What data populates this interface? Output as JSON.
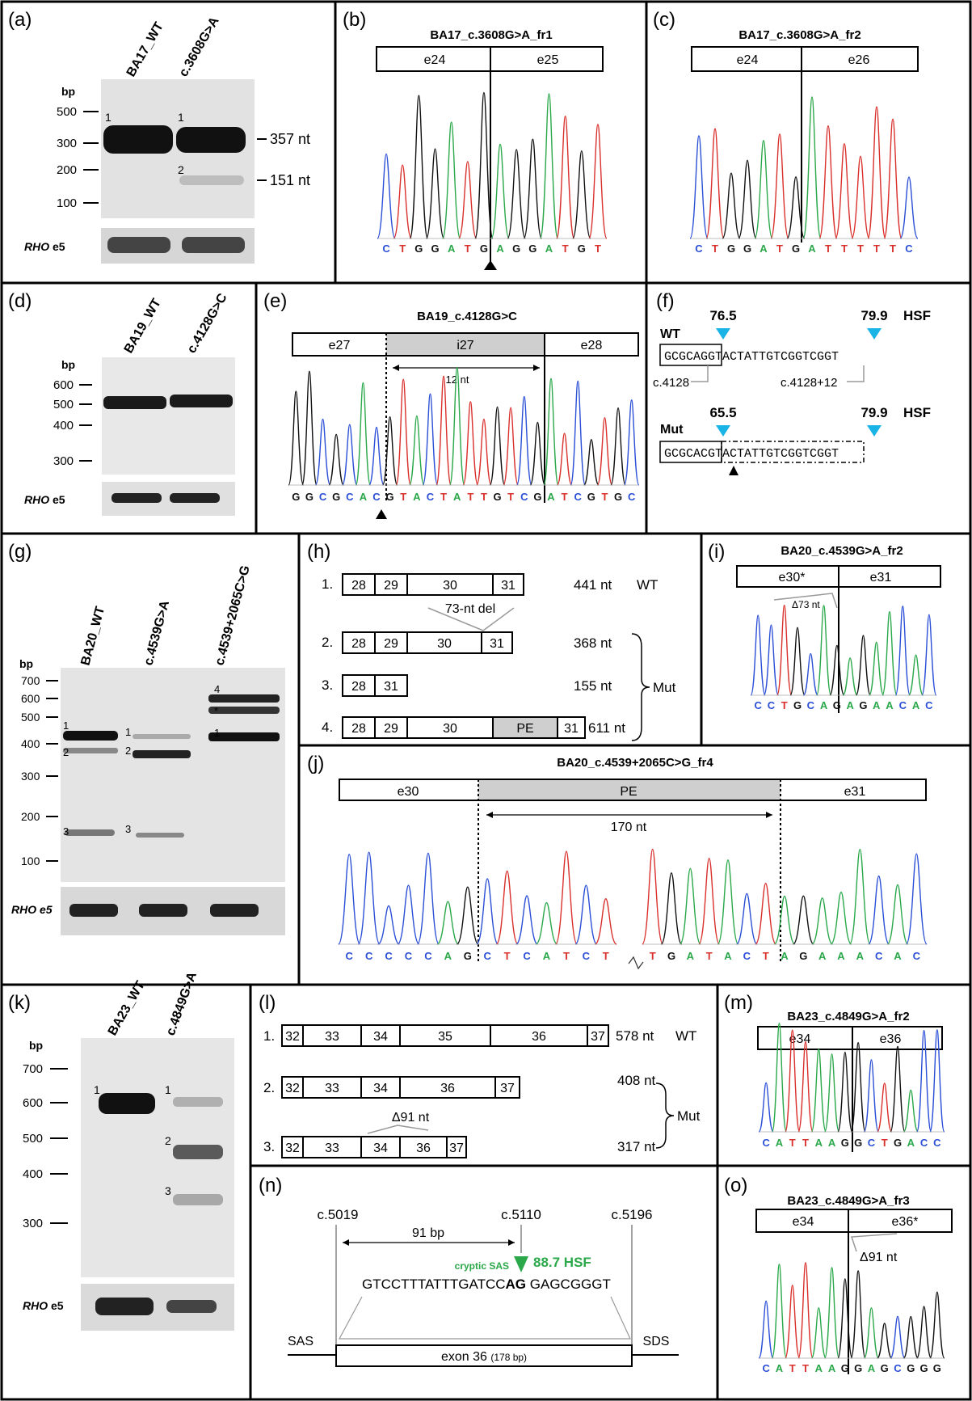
{
  "panels": {
    "a": {
      "label": "(a)",
      "lanes": [
        "BA17_WT",
        "c.3608G>A"
      ],
      "bp_unit": "bp",
      "markers": [
        "500",
        "300",
        "200",
        "100"
      ],
      "band_nums": [
        "1",
        "1",
        "2"
      ],
      "sizes": [
        "357 nt",
        "151 nt"
      ],
      "loading_gene": "RHO",
      "loading_exon": "e5"
    },
    "b": {
      "label": "(b)",
      "title": "BA17_c.3608G>A_fr1",
      "exons": [
        "e24",
        "e25"
      ],
      "bases": "CTGGATGAGGATGT"
    },
    "c": {
      "label": "(c)",
      "title": "BA17_c.3608G>A_fr2",
      "exons": [
        "e24",
        "e26"
      ],
      "bases": "CTGGATGATTTTTC"
    },
    "d": {
      "label": "(d)",
      "lanes": [
        "BA19_WT",
        "c.4128G>C"
      ],
      "bp_unit": "bp",
      "markers": [
        "600",
        "500",
        "400",
        "300"
      ],
      "loading_gene": "RHO",
      "loading_exon": "e5"
    },
    "e": {
      "label": "(e)",
      "title": "BA19_c.4128G>C",
      "exons": [
        "e27",
        "i27",
        "e28"
      ],
      "span": "12 nt",
      "bases": "GGCGCACGTACTATTGTCGATCGTGC"
    },
    "f": {
      "label": "(f)",
      "wt": "WT",
      "mut": "Mut",
      "hsf": "HSF",
      "wt_scores": [
        "76.5",
        "79.9"
      ],
      "mut_scores": [
        "65.5",
        "79.9"
      ],
      "wt_seq_box": "GCGCAG",
      "wt_seq_rest": "GTACTATTGTCGGTCGGT",
      "mut_seq_box": "GCGCAC",
      "mut_seq_rest": "GTACTATTGTCGGTCGGT",
      "pos1": "c.4128",
      "pos2": "c.4128+12"
    },
    "g": {
      "label": "(g)",
      "lanes": [
        "BA20_WT",
        "c.4539G>A",
        "c.4539+2065C>G"
      ],
      "bp_unit": "bp",
      "markers": [
        "700",
        "600",
        "500",
        "400",
        "300",
        "200",
        "100"
      ],
      "band_nums": [
        "1",
        "2",
        "3",
        "1",
        "2",
        "3",
        "4",
        "*",
        "1"
      ],
      "loading_gene": "RHO",
      "loading_exon": "e5"
    },
    "h": {
      "label": "(h)",
      "rows": [
        {
          "num": "1.",
          "boxes": [
            "28",
            "29",
            "30",
            "31"
          ],
          "size": "441 nt",
          "tag": "WT"
        },
        {
          "num": "2.",
          "boxes": [
            "28",
            "29",
            "30",
            "31"
          ],
          "size": "368 nt"
        },
        {
          "num": "3.",
          "boxes": [
            "28",
            "31"
          ],
          "size": "155 nt"
        },
        {
          "num": "4.",
          "boxes": [
            "28",
            "29",
            "30",
            "PE",
            "31"
          ],
          "size": "611 nt"
        }
      ],
      "del_label": "73-nt del",
      "mut": "Mut"
    },
    "i": {
      "label": "(i)",
      "title": "BA20_c.4539G>A_fr2",
      "exons": [
        "e30*",
        "e31"
      ],
      "delta": "Δ73 nt",
      "bases": "CCTGCAGAGAACAC"
    },
    "j": {
      "label": "(j)",
      "title": "BA20_c.4539+2065C>G_fr4",
      "exons": [
        "e30",
        "PE",
        "e31"
      ],
      "span": "170 nt",
      "bases_left": "CCCCCAGCTCATCT",
      "bases_right": "TGATACTAGAAACAC"
    },
    "k": {
      "label": "(k)",
      "lanes": [
        "BA23_WT",
        "c.4849G>A"
      ],
      "bp_unit": "bp",
      "markers": [
        "700",
        "600",
        "500",
        "400",
        "300"
      ],
      "band_nums": [
        "1",
        "1",
        "2",
        "3"
      ],
      "loading_gene": "RHO",
      "loading_exon": "e5"
    },
    "l": {
      "label": "(l)",
      "rows": [
        {
          "num": "1.",
          "boxes": [
            "32",
            "33",
            "34",
            "35",
            "36",
            "37"
          ],
          "size": "578 nt",
          "tag": "WT"
        },
        {
          "num": "2.",
          "boxes": [
            "32",
            "33",
            "34",
            "36",
            "37"
          ],
          "size": "408 nt"
        },
        {
          "num": "3.",
          "boxes": [
            "32",
            "33",
            "34",
            "36",
            "37"
          ],
          "size": "317 nt"
        }
      ],
      "delta": "Δ91 nt",
      "mut": "Mut"
    },
    "m": {
      "label": "(m)",
      "title": "BA23_c.4849G>A_fr2",
      "exons": [
        "e34",
        "e36"
      ],
      "bases": "CATTAAGGCTGACC"
    },
    "n": {
      "label": "(n)",
      "pos": [
        "c.5019",
        "c.5110",
        "c.5196"
      ],
      "span": "91 bp",
      "cryptic": "cryptic SAS",
      "score": "88.7 HSF",
      "seq_a": "GTCCTTTATTTGATCC",
      "seq_b": "AG",
      "seq_c": "GAGCGGGT",
      "sas": "SAS",
      "sds": "SDS",
      "exon": "exon 36",
      "exon_len": "(178 bp)"
    },
    "o": {
      "label": "(o)",
      "title": "BA23_c.4849G>A_fr3",
      "exons": [
        "e34",
        "e36*"
      ],
      "delta": "Δ91 nt",
      "bases": "CATTAAGGAGCGGG"
    }
  }
}
